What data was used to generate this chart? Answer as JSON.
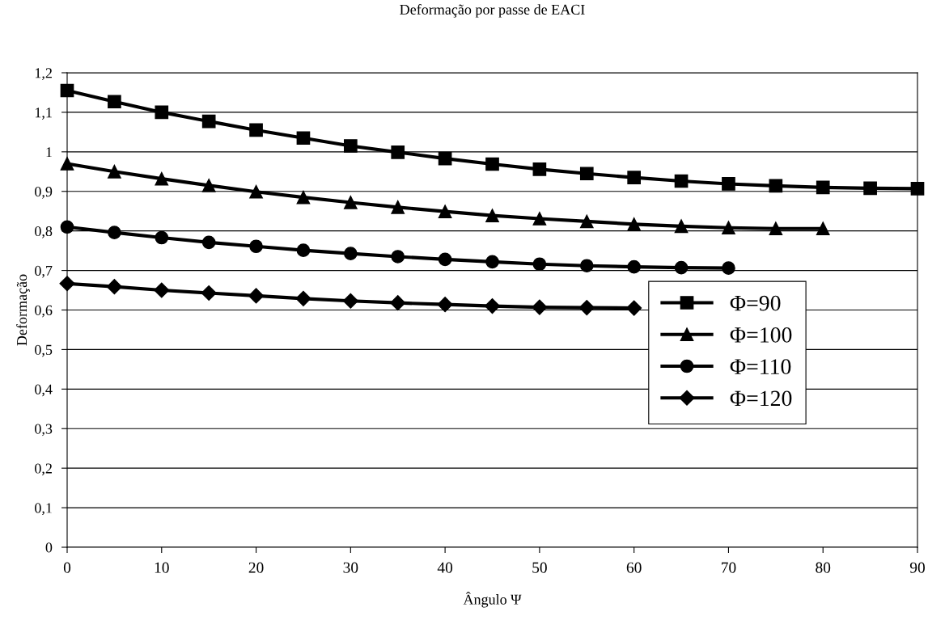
{
  "chart_data": {
    "type": "line",
    "title": "Deformação por passe de EACI",
    "xlabel": "Ângulo Ψ",
    "ylabel": "Deformação",
    "xlim": [
      0,
      90
    ],
    "xticks": [
      0,
      10,
      20,
      30,
      40,
      50,
      60,
      70,
      80,
      90
    ],
    "ylim": [
      0,
      1.2
    ],
    "yticks": [
      0,
      {
        "value": 0.1,
        "label": "0,1"
      },
      {
        "value": 0.2,
        "label": "0,2"
      },
      {
        "value": 0.3,
        "label": "0,3"
      },
      {
        "value": 0.4,
        "label": "0,4"
      },
      {
        "value": 0.5,
        "label": "0,5"
      },
      {
        "value": 0.6,
        "label": "0,6"
      },
      {
        "value": 0.7,
        "label": "0,7"
      },
      {
        "value": 0.8,
        "label": "0,8"
      },
      {
        "value": 0.9,
        "label": "0,9"
      },
      1,
      {
        "value": 1.1,
        "label": "1,1"
      },
      {
        "value": 1.2,
        "label": "1,2"
      }
    ],
    "grid": "y",
    "legend": "right",
    "line_style": "solid",
    "series": [
      {
        "name": "Φ=90",
        "color": "#000000",
        "marker": "square",
        "x": [
          0,
          5,
          10,
          15,
          20,
          25,
          30,
          35,
          40,
          45,
          50,
          55,
          60,
          65,
          70,
          75,
          80,
          85,
          90
        ],
        "values": [
          1.155,
          1.127,
          1.1,
          1.077,
          1.055,
          1.035,
          1.015,
          0.999,
          0.983,
          0.969,
          0.956,
          0.945,
          0.935,
          0.926,
          0.919,
          0.914,
          0.91,
          0.908,
          0.907
        ]
      },
      {
        "name": "Φ=100",
        "color": "#000000",
        "marker": "triangle",
        "x": [
          0,
          5,
          10,
          15,
          20,
          25,
          30,
          35,
          40,
          45,
          50,
          55,
          60,
          65,
          70,
          75,
          80
        ],
        "values": [
          0.97,
          0.95,
          0.932,
          0.915,
          0.899,
          0.885,
          0.872,
          0.86,
          0.849,
          0.839,
          0.831,
          0.824,
          0.817,
          0.812,
          0.808,
          0.806,
          0.806
        ]
      },
      {
        "name": "Φ=110",
        "color": "#000000",
        "marker": "circle",
        "x": [
          0,
          5,
          10,
          15,
          20,
          25,
          30,
          35,
          40,
          45,
          50,
          55,
          60,
          65,
          70
        ],
        "values": [
          0.81,
          0.796,
          0.783,
          0.771,
          0.761,
          0.751,
          0.743,
          0.735,
          0.728,
          0.722,
          0.716,
          0.712,
          0.709,
          0.707,
          0.706
        ]
      },
      {
        "name": "Φ=120",
        "color": "#000000",
        "marker": "diamond",
        "x": [
          0,
          5,
          10,
          15,
          20,
          25,
          30,
          35,
          40,
          45,
          50,
          55,
          60
        ],
        "values": [
          0.667,
          0.659,
          0.65,
          0.643,
          0.636,
          0.629,
          0.623,
          0.618,
          0.614,
          0.61,
          0.607,
          0.606,
          0.605
        ]
      }
    ]
  }
}
